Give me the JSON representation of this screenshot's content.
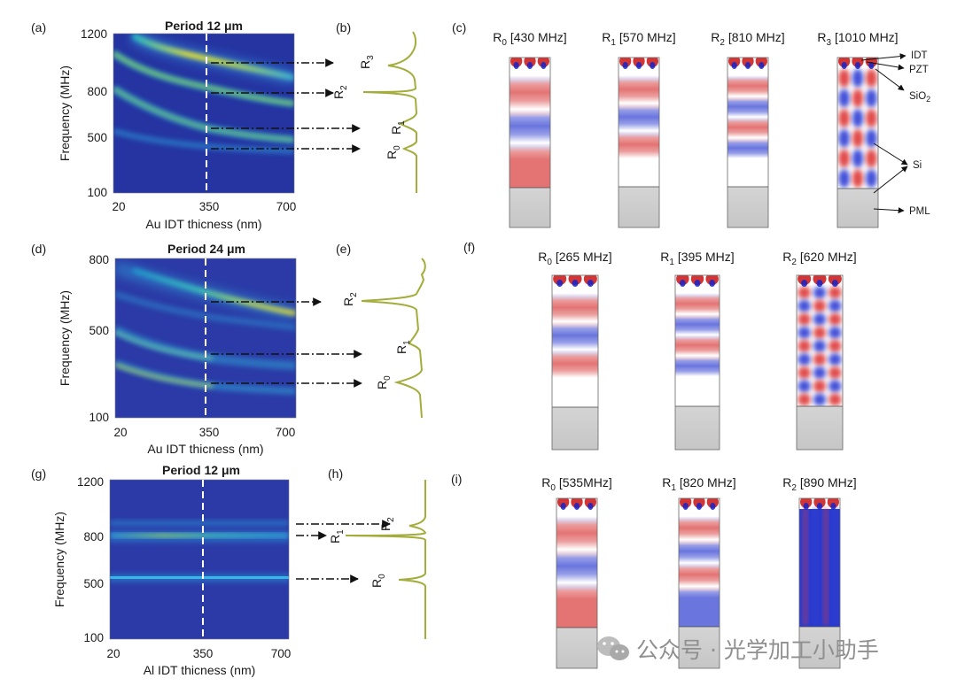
{
  "panels": {
    "a": {
      "letter": "(a)",
      "title": "Period 12 μm",
      "ylabel": "Frequency (MHz)",
      "xlabel": "Au IDT thicness (nm)",
      "yticks": [
        "1200",
        "800",
        "500",
        "100"
      ],
      "xticks": [
        "20",
        "350",
        "700"
      ]
    },
    "b": {
      "letter": "(b)",
      "modes": [
        {
          "base": "R",
          "sub": "3"
        },
        {
          "base": "R",
          "sub": "2"
        },
        {
          "base": "R",
          "sub": "1"
        },
        {
          "base": "R",
          "sub": "0"
        }
      ]
    },
    "c": {
      "letter": "(c)",
      "modes": [
        {
          "base": "R",
          "sub": "0",
          "freq": "[430 MHz]"
        },
        {
          "base": "R",
          "sub": "1",
          "freq": "[570 MHz]"
        },
        {
          "base": "R",
          "sub": "2",
          "freq": "[810 MHz]"
        },
        {
          "base": "R",
          "sub": "3",
          "freq": "[1010 MHz]"
        }
      ],
      "layers": {
        "idt": "IDT",
        "pzt": "PZT",
        "sio_base": "SiO",
        "sio_sub": "2",
        "si": "Si",
        "pml": "PML"
      }
    },
    "d": {
      "letter": "(d)",
      "title": "Period 24 μm",
      "ylabel": "Frequency (MHz)",
      "xlabel": "Au IDT thicness (nm)",
      "yticks": [
        "800",
        "500",
        "100"
      ],
      "xticks": [
        "20",
        "350",
        "700"
      ]
    },
    "e": {
      "letter": "(e)",
      "modes": [
        {
          "base": "R",
          "sub": "2"
        },
        {
          "base": "R",
          "sub": "1"
        },
        {
          "base": "R",
          "sub": "0"
        }
      ]
    },
    "f": {
      "letter": "(f)",
      "modes": [
        {
          "base": "R",
          "sub": "0",
          "freq": "[265 MHz]"
        },
        {
          "base": "R",
          "sub": "1",
          "freq": "[395 MHz]"
        },
        {
          "base": "R",
          "sub": "2",
          "freq": "[620 MHz]"
        }
      ]
    },
    "g": {
      "letter": "(g)",
      "title": "Period 12 μm",
      "ylabel": "Frequency (MHz)",
      "xlabel": "Al IDT thicness (nm)",
      "yticks": [
        "1200",
        "800",
        "500",
        "100"
      ],
      "xticks": [
        "20",
        "350",
        "700"
      ]
    },
    "h": {
      "letter": "(h)",
      "modes": [
        {
          "base": "R",
          "sub": "2"
        },
        {
          "base": "R",
          "sub": "1"
        },
        {
          "base": "R",
          "sub": "0"
        }
      ]
    },
    "i": {
      "letter": "(i)",
      "modes": [
        {
          "base": "R",
          "sub": "0",
          "freq": "[535MHz]"
        },
        {
          "base": "R",
          "sub": "1",
          "freq": "[820 MHz]"
        },
        {
          "base": "R",
          "sub": "2",
          "freq": "[890 MHz]"
        }
      ]
    }
  },
  "watermark": {
    "text": "公众号 · 光学加工小助手",
    "icon": "wechat-icon"
  },
  "colors": {
    "heatmap_bg": "#2b3aa6",
    "spectrum": "#a4ad3c",
    "mode_red": "#d42c2c",
    "mode_blue": "#2233cc",
    "substrate": "#cfcfcf"
  }
}
